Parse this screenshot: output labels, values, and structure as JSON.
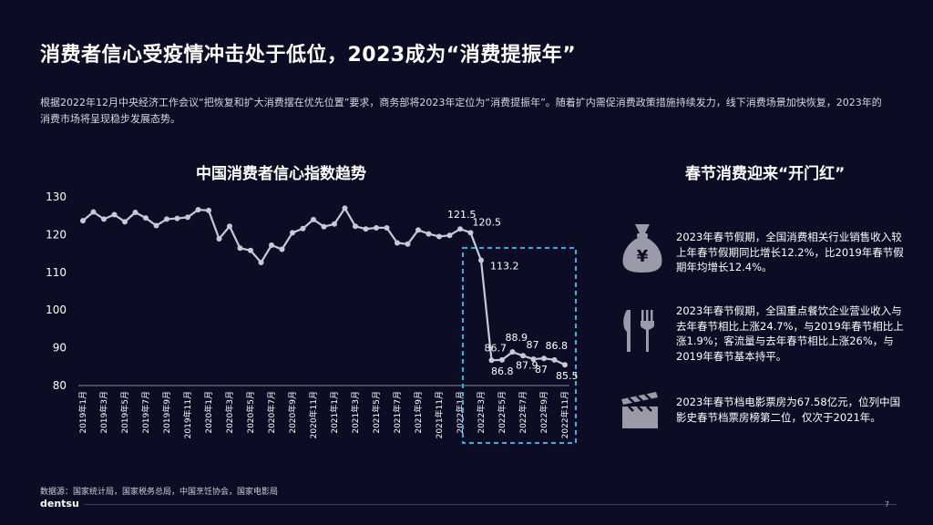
{
  "title": "消费者信心受疫情冲击处于低位，2023成为“消费提振年”",
  "subtitle": "根据2022年12月中央经济工作会议“把恢复和扩大消费摆在优先位置”要求，商务部将2023年定位为“消费提振年”。随着扩内需促消费政策措施持续发力，线下消费场景加快恢复，2023年的消费市场将呈现稳步发展态势。",
  "chart_data": {
    "type": "line",
    "title": "中国消费者信心指数趋势",
    "categories": [
      "2019年1月",
      "2019年2月",
      "2019年3月",
      "2019年4月",
      "2019年5月",
      "2019年6月",
      "2019年7月",
      "2019年8月",
      "2019年9月",
      "2019年10月",
      "2019年11月",
      "2019年12月",
      "2020年1月",
      "2020年2月",
      "2020年3月",
      "2020年4月",
      "2020年5月",
      "2020年6月",
      "2020年7月",
      "2020年8月",
      "2020年9月",
      "2020年10月",
      "2020年11月",
      "2020年12月",
      "2021年1月",
      "2021年2月",
      "2021年3月",
      "2021年4月",
      "2021年5月",
      "2021年6月",
      "2021年7月",
      "2021年8月",
      "2021年9月",
      "2021年10月",
      "2021年11月",
      "2021年12月",
      "2022年1月",
      "2022年2月",
      "2022年3月",
      "2022年4月",
      "2022年5月",
      "2022年6月",
      "2022年7月",
      "2022年8月",
      "2022年9月",
      "2022年10月",
      "2022年11月"
    ],
    "tick_labels": [
      "2019年1月",
      "2019年3月",
      "2019年5月",
      "2019年7月",
      "2019年9月",
      "2019年11月",
      "2020年1月",
      "2020年3月",
      "2020年5月",
      "2020年7月",
      "2020年9月",
      "2020年11月",
      "2021年1月",
      "2021年3月",
      "2021年5月",
      "2021年7月",
      "2021年9月",
      "2021年11月",
      "2022年1月",
      "2022年3月",
      "2022年5月",
      "2022年7月",
      "2022年9月",
      "2022年11月"
    ],
    "values": [
      123.7,
      126.0,
      124.1,
      125.3,
      123.4,
      125.9,
      124.4,
      122.4,
      124.1,
      124.3,
      124.6,
      126.6,
      126.4,
      118.9,
      122.2,
      116.4,
      115.8,
      112.6,
      117.2,
      116.1,
      120.5,
      121.6,
      124.0,
      122.1,
      122.8,
      127.0,
      122.2,
      121.5,
      121.8,
      121.8,
      117.8,
      117.5,
      121.2,
      120.2,
      119.5,
      119.8,
      121.5,
      120.5,
      113.2,
      86.7,
      86.8,
      88.9,
      87.9,
      87.0,
      87.2,
      86.8,
      85.5
    ],
    "labels": [
      {
        "index": 36,
        "text": "121.5"
      },
      {
        "index": 37,
        "text": "120.5"
      },
      {
        "index": 38,
        "text": "113.2"
      },
      {
        "index": 39,
        "text": "86.7"
      },
      {
        "index": 40,
        "text": "86.8"
      },
      {
        "index": 41,
        "text": "88.9"
      },
      {
        "index": 42,
        "text": "87.9"
      },
      {
        "index": 43,
        "text": "87"
      },
      {
        "index": 44,
        "text": "87"
      },
      {
        "index": 45,
        "text": "86.8"
      },
      {
        "index": 46,
        "text": "85.5"
      }
    ],
    "yticks": [
      80,
      90,
      100,
      110,
      120,
      130
    ],
    "ylim": [
      80,
      130
    ],
    "highlight_range": [
      "2022年3月",
      "2022年11月"
    ],
    "colors": {
      "line": "#c8c9d6",
      "highlight": "#26b6d4",
      "axis": "#8a8ba0"
    }
  },
  "side": {
    "title": "春节消费迎来“开门红”",
    "facts": [
      {
        "icon": "money-bag-icon",
        "text": "2023年春节假期，全国消费相关行业销售收入较上年春节假期同比增长12.2%，比2019年春节假期年均增长12.4%。"
      },
      {
        "icon": "fork-knife-icon",
        "text": "2023年春节假期，全国重点餐饮企业营业收入与去年春节相比上涨24.7%，与2019年春节相比上涨1.9%；客流量与去年春节相比上涨26%，与2019年春节基本持平。"
      },
      {
        "icon": "clapperboard-icon",
        "text": "2023年春节档电影票房为67.58亿元，位列中国影史春节档票房榜第二位，仅次于2021年。"
      }
    ]
  },
  "source": "数据源：国家统计局，国家税务总局，中国烹饪协会，国家电影局",
  "brand": "dentsu",
  "page_number": "7"
}
